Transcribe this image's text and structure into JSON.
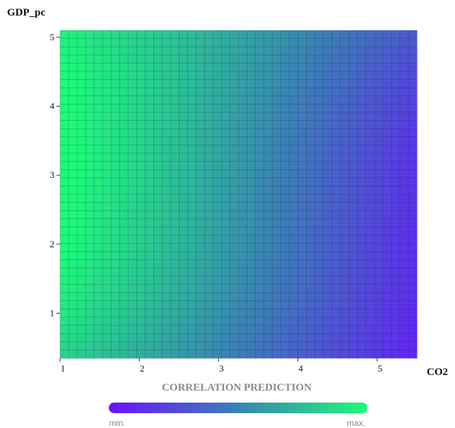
{
  "chart_data": {
    "type": "heatmap",
    "title": "",
    "xlabel": "CO2",
    "ylabel": "GDP_pc",
    "xlim": [
      1,
      5.5
    ],
    "ylim": [
      0.35,
      5.1
    ],
    "x_ticks": [
      1,
      2,
      3,
      4,
      5
    ],
    "y_ticks": [
      1,
      2,
      3,
      4,
      5
    ],
    "grid_cols": 42,
    "grid_rows": 40,
    "caption": "CORRELATION PREDICTION",
    "colorscale": {
      "min_label": "min.",
      "max_label": "max.",
      "min_color": "#6a11ff",
      "mid_color": "#3a82b5",
      "max_color": "#1cfb78"
    },
    "values_description_anchors": [
      {
        "x": 1.0,
        "y": 3.0,
        "v": 1.0
      },
      {
        "x": 1.0,
        "y": 5.1,
        "v": 0.72
      },
      {
        "x": 1.0,
        "y": 0.35,
        "v": 0.55
      },
      {
        "x": 3.0,
        "y": 2.7,
        "v": 0.55
      },
      {
        "x": 4.2,
        "y": 2.7,
        "v": 0.3
      },
      {
        "x": 5.5,
        "y": 5.1,
        "v": 0.72
      },
      {
        "x": 5.5,
        "y": 0.8,
        "v": 0.0
      }
    ]
  }
}
